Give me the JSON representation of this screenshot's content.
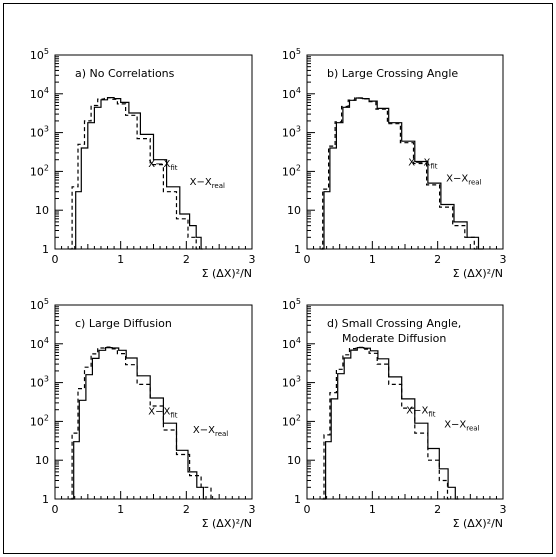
{
  "chart_data": [
    {
      "type": "line",
      "panel_label": "a) No Correlations",
      "xlabel": "Σ (ΔX)²/N",
      "xlim": [
        0,
        3
      ],
      "x_ticks": [
        "0",
        "1",
        "2",
        "3"
      ],
      "ylim": [
        1,
        100000
      ],
      "y_scale": "log",
      "y_ticks": [
        "1",
        "10",
        "10²",
        "10³",
        "10⁴",
        "10⁵"
      ],
      "series": [
        {
          "name": "X−X_fit",
          "style": "solid",
          "x": [
            0.28,
            0.35,
            0.45,
            0.55,
            0.65,
            0.75,
            0.85,
            0.95,
            1.05,
            1.2,
            1.4,
            1.6,
            1.8,
            2.0,
            2.1,
            2.2,
            2.25
          ],
          "y": [
            1,
            30,
            400,
            1800,
            4500,
            7000,
            8000,
            7500,
            6000,
            3200,
            900,
            200,
            40,
            8,
            4,
            2,
            1
          ]
        },
        {
          "name": "X−X_real",
          "style": "dashed",
          "x": [
            0.22,
            0.3,
            0.4,
            0.5,
            0.6,
            0.7,
            0.8,
            0.9,
            1.0,
            1.15,
            1.35,
            1.55,
            1.75,
            1.95,
            2.1,
            2.2
          ],
          "y": [
            1,
            40,
            500,
            2000,
            5000,
            7300,
            8000,
            7200,
            5500,
            2800,
            700,
            150,
            30,
            6,
            2,
            1
          ]
        }
      ],
      "annotations": [
        {
          "text": "X−X",
          "sub": "fit",
          "x": 1.42,
          "y": 130
        },
        {
          "text": "X−X",
          "sub": "real",
          "x": 2.05,
          "y": 45
        }
      ]
    },
    {
      "type": "line",
      "panel_label": "b) Large Crossing Angle",
      "xlabel": "Σ (ΔX)²/N",
      "xlim": [
        0,
        3
      ],
      "x_ticks": [
        "0",
        "1",
        "2",
        "3"
      ],
      "ylim": [
        1,
        100000
      ],
      "y_scale": "log",
      "y_ticks": [
        "1",
        "10",
        "10²",
        "10³",
        "10⁴",
        "10⁵"
      ],
      "series": [
        {
          "name": "X−X_fit",
          "style": "solid",
          "x": [
            0.22,
            0.3,
            0.4,
            0.5,
            0.6,
            0.7,
            0.8,
            0.9,
            1.0,
            1.15,
            1.35,
            1.55,
            1.75,
            1.95,
            2.15,
            2.35,
            2.55,
            2.7
          ],
          "y": [
            1,
            30,
            400,
            1800,
            4500,
            6800,
            7800,
            7500,
            6500,
            4200,
            1800,
            600,
            180,
            50,
            14,
            5,
            2,
            1
          ]
        },
        {
          "name": "X−X_real",
          "style": "dashed",
          "x": [
            0.2,
            0.28,
            0.38,
            0.48,
            0.58,
            0.68,
            0.78,
            0.88,
            0.98,
            1.13,
            1.33,
            1.53,
            1.73,
            1.93,
            2.13,
            2.33,
            2.5,
            2.62
          ],
          "y": [
            1,
            35,
            450,
            1900,
            4700,
            6900,
            7800,
            7400,
            6300,
            4000,
            1700,
            550,
            160,
            45,
            12,
            4,
            2,
            1
          ]
        }
      ],
      "annotations": [
        {
          "text": "X−X",
          "sub": "fit",
          "x": 1.55,
          "y": 140
        },
        {
          "text": "X−X",
          "sub": "real",
          "x": 2.13,
          "y": 55
        }
      ]
    },
    {
      "type": "line",
      "panel_label": "c) Large Diffusion",
      "xlabel": "Σ (ΔX)²/N",
      "xlim": [
        0,
        3
      ],
      "x_ticks": [
        "0",
        "1",
        "2",
        "3"
      ],
      "ylim": [
        1,
        100000
      ],
      "y_scale": "log",
      "y_ticks": [
        "1",
        "10",
        "10²",
        "10³",
        "10⁴",
        "10⁵"
      ],
      "series": [
        {
          "name": "X−X_fit",
          "style": "solid",
          "x": [
            0.25,
            0.32,
            0.42,
            0.52,
            0.62,
            0.72,
            0.82,
            0.92,
            1.02,
            1.15,
            1.35,
            1.55,
            1.75,
            1.95,
            2.1,
            2.22,
            2.3
          ],
          "y": [
            1,
            30,
            350,
            1600,
            4200,
            6800,
            8000,
            7800,
            6800,
            4300,
            1500,
            400,
            90,
            18,
            5,
            2,
            1
          ]
        },
        {
          "name": "X−X_real",
          "style": "dashed",
          "x": [
            0.22,
            0.3,
            0.4,
            0.5,
            0.6,
            0.7,
            0.8,
            0.9,
            1.0,
            1.15,
            1.35,
            1.55,
            1.75,
            1.95,
            2.15,
            2.3,
            2.45
          ],
          "y": [
            1,
            50,
            700,
            2500,
            5500,
            7800,
            8200,
            7400,
            5600,
            2900,
            900,
            250,
            60,
            14,
            4,
            2,
            1
          ]
        }
      ],
      "annotations": [
        {
          "text": "X−X",
          "sub": "fit",
          "x": 1.42,
          "y": 150
        },
        {
          "text": "X−X",
          "sub": "real",
          "x": 2.1,
          "y": 50
        }
      ]
    },
    {
      "type": "line",
      "panel_label": "d) Small Crossing Angle,",
      "panel_label_2": "Moderate Diffusion",
      "xlabel": "Σ (ΔX)²/N",
      "xlim": [
        0,
        3
      ],
      "x_ticks": [
        "0",
        "1",
        "2",
        "3"
      ],
      "ylim": [
        1,
        100000
      ],
      "y_scale": "log",
      "y_ticks": [
        "1",
        "10",
        "10²",
        "10³",
        "10⁴",
        "10⁵"
      ],
      "series": [
        {
          "name": "X−X_fit",
          "style": "solid",
          "x": [
            0.25,
            0.32,
            0.42,
            0.52,
            0.62,
            0.72,
            0.82,
            0.92,
            1.02,
            1.15,
            1.35,
            1.55,
            1.75,
            1.95,
            2.1,
            2.22,
            2.32
          ],
          "y": [
            1,
            30,
            380,
            1700,
            4300,
            6900,
            8000,
            7700,
            6600,
            4100,
            1400,
            380,
            90,
            20,
            6,
            2,
            1
          ]
        },
        {
          "name": "X−X_real",
          "style": "dashed",
          "x": [
            0.22,
            0.3,
            0.4,
            0.5,
            0.6,
            0.7,
            0.8,
            0.9,
            1.0,
            1.15,
            1.35,
            1.55,
            1.75,
            1.95,
            2.1,
            2.2
          ],
          "y": [
            1,
            45,
            550,
            2200,
            5200,
            7500,
            8100,
            7300,
            5700,
            3000,
            900,
            220,
            50,
            10,
            3,
            1
          ]
        }
      ],
      "annotations": [
        {
          "text": "X−X",
          "sub": "fit",
          "x": 1.52,
          "y": 160
        },
        {
          "text": "X−X",
          "sub": "real",
          "x": 2.1,
          "y": 70
        }
      ]
    }
  ]
}
